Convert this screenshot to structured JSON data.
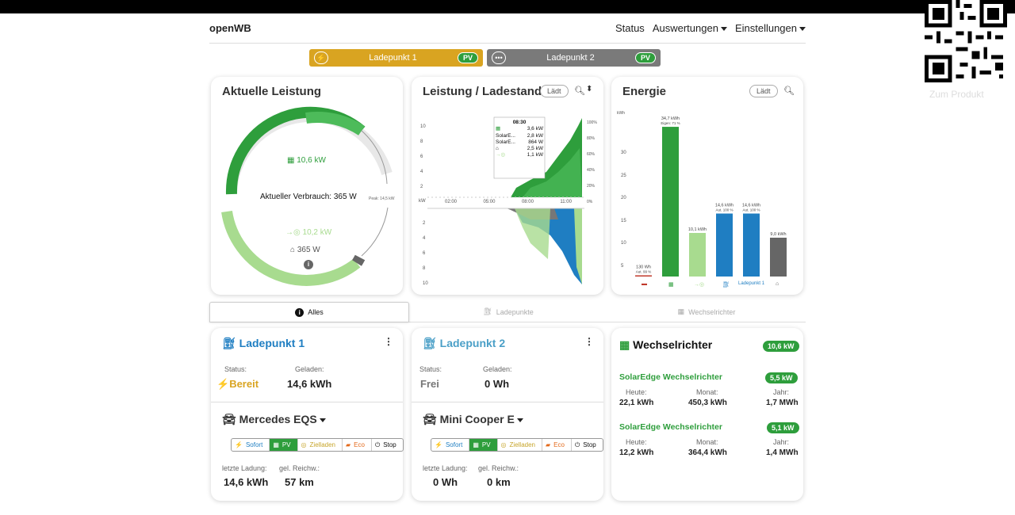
{
  "app": {
    "brand": "openWB"
  },
  "nav": {
    "status": "Status",
    "auswertungen": "Auswertungen",
    "einstellungen": "Einstellungen"
  },
  "chargepoint_buttons": [
    {
      "label": "Ladepunkt 1",
      "badge": "PV",
      "color": "#d9a421"
    },
    {
      "label": "Ladepunkt 2",
      "badge": "PV",
      "color": "#7a7a7a"
    }
  ],
  "power_card": {
    "title": "Aktuelle Leistung",
    "pv": "10,6 kW",
    "center": "Aktueller Verbrauch: 365 W",
    "export": "10,2 kW",
    "house": "365 W",
    "peak": "Peak: 14,5 kW"
  },
  "chart_card": {
    "title": "Leistung / Ladestand",
    "mode_pill": "Lädt",
    "y_labels_top": [
      "10",
      "8",
      "6",
      "4",
      "2"
    ],
    "y_labels_bottom": [
      "2",
      "4",
      "6",
      "8",
      "10"
    ],
    "right_labels": [
      "100%",
      "80%",
      "60%",
      "40%",
      "20%",
      "0%"
    ],
    "x_labels": [
      "02:00",
      "05:00",
      "08:00",
      "11:00"
    ],
    "unit": "kW",
    "tooltip": {
      "time": "08:30",
      "rows": [
        {
          "label": "",
          "value": "3,6 kW"
        },
        {
          "label": "SolarE...",
          "value": "2,8 kW"
        },
        {
          "label": "SolarE...",
          "value": "864 W"
        },
        {
          "label": "",
          "value": "2,5 kW"
        },
        {
          "label": "",
          "value": "1,1 kW"
        }
      ]
    }
  },
  "energy_card": {
    "title": "Energie",
    "mode_pill": "Lädt",
    "unit": "kWh",
    "y_labels": [
      "30",
      "25",
      "20",
      "15",
      "10",
      "5"
    ],
    "bar_labels": [
      "130 Wh",
      "34,7 kWh",
      "10,1 kWh",
      "14,6 kWh",
      "14,6 kWh",
      "9,0 kWh"
    ],
    "bar_sublabels": [
      "Aut. 99 %",
      "Eigen: 71 %",
      "",
      "Aut. 100 %",
      "Aut. 100 %",
      ""
    ],
    "x_label_lp": "Ladepunkt 1"
  },
  "chart_data": {
    "type": "bar",
    "categories": [
      "grid",
      "pv",
      "export",
      "charge",
      "Ladepunkt 1",
      "house"
    ],
    "values": [
      0.13,
      34.7,
      10.1,
      14.6,
      14.6,
      9.0
    ],
    "colors": [
      "#c0392b",
      "#2e9e3c",
      "#a8db8f",
      "#1f7ec2",
      "#1f7ec2",
      "#666666"
    ],
    "ylabel": "kWh",
    "ylim": [
      0,
      36
    ]
  },
  "tabs": {
    "all": "Alles",
    "chargepoints": "Ladepunkte",
    "inverters": "Wechselrichter"
  },
  "lp1": {
    "title": "Ladepunkt 1",
    "status_label": "Status:",
    "status": "Bereit",
    "charged_label": "Geladen:",
    "charged": "14,6 kWh",
    "vehicle": "Mercedes EQS",
    "last_label": "letzte Ladung:",
    "last": "14,6 kWh",
    "range_label": "gel. Reichw.:",
    "range": "57 km"
  },
  "lp2": {
    "title": "Ladepunkt 2",
    "status_label": "Status:",
    "status": "Frei",
    "charged_label": "Geladen:",
    "charged": "0 Wh",
    "vehicle": "Mini Cooper E",
    "last_label": "letzte Ladung:",
    "last": "0 Wh",
    "range_label": "gel. Reichw.:",
    "range": "0 km"
  },
  "modes": {
    "sofort": "Sofort",
    "pv": "PV",
    "ziel": "Zielladen",
    "eco": "Eco",
    "stop": "Stop"
  },
  "inverter": {
    "title": "Wechselrichter",
    "total": "10,6 kW",
    "items": [
      {
        "name": "SolarEdge Wechselrichter",
        "power": "5,5 kW",
        "heute_label": "Heute:",
        "heute": "22,1 kWh",
        "monat_label": "Monat:",
        "monat": "450,3 kWh",
        "jahr_label": "Jahr:",
        "jahr": "1,7 MWh"
      },
      {
        "name": "SolarEdge Wechselrichter",
        "power": "5,1 kW",
        "heute_label": "Heute:",
        "heute": "12,2 kWh",
        "monat_label": "Monat:",
        "monat": "364,4 kWh",
        "jahr_label": "Jahr:",
        "jahr": "1,4 MWh"
      }
    ]
  },
  "overlay": {
    "qr_caption": "Zum Produkt"
  }
}
